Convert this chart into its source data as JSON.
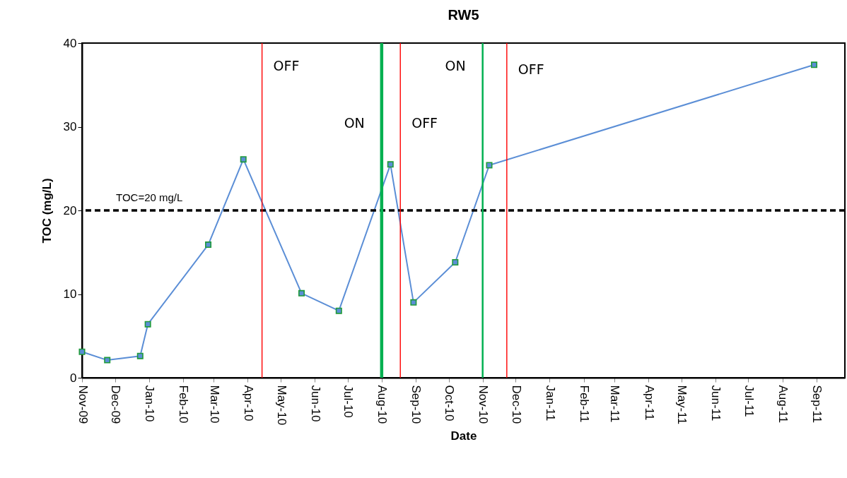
{
  "chart_data": {
    "type": "line",
    "title": "RW5",
    "xlabel": "Date",
    "ylabel": "TOC (mg/L)",
    "x": [
      "2009-11-01",
      "2009-11-24",
      "2009-12-24",
      "2009-12-31",
      "2010-02-24",
      "2010-03-28",
      "2010-05-20",
      "2010-06-23",
      "2010-08-09",
      "2010-08-30",
      "2010-10-07",
      "2010-11-07",
      "2011-08-30"
    ],
    "series": [
      {
        "color": "#5b8ed6",
        "values": [
          3.1,
          2.1,
          2.6,
          6.4,
          15.9,
          26.1,
          10.1,
          8.0,
          25.5,
          9.0,
          13.8,
          25.4,
          37.4
        ]
      }
    ],
    "marker": "square",
    "line_style": "solid",
    "grid": false,
    "xlim": [
      "2009-11-01",
      "2011-09-27"
    ],
    "xticks": [
      {
        "value": "2009-11",
        "label": "Nov-09"
      },
      {
        "value": "2009-12",
        "label": "Dec-09"
      },
      {
        "value": "2010-01",
        "label": "Jan-10"
      },
      {
        "value": "2010-02",
        "label": "Feb-10"
      },
      {
        "value": "2010-03",
        "label": "Mar-10"
      },
      {
        "value": "2010-04",
        "label": "Apr-10"
      },
      {
        "value": "2010-05",
        "label": "May-10"
      },
      {
        "value": "2010-06",
        "label": "Jun-10"
      },
      {
        "value": "2010-07",
        "label": "Jul-10"
      },
      {
        "value": "2010-08",
        "label": "Aug-10"
      },
      {
        "value": "2010-09",
        "label": "Sep-10"
      },
      {
        "value": "2010-10",
        "label": "Oct-10"
      },
      {
        "value": "2010-11",
        "label": "Nov-10"
      },
      {
        "value": "2010-12",
        "label": "Dec-10"
      },
      {
        "value": "2011-01",
        "label": "Jan-11"
      },
      {
        "value": "2011-02",
        "label": "Feb-11"
      },
      {
        "value": "2011-03",
        "label": "Mar-11"
      },
      {
        "value": "2011-04",
        "label": "Apr-11"
      },
      {
        "value": "2011-05",
        "label": "May-11"
      },
      {
        "value": "2011-06",
        "label": "Jun-11"
      },
      {
        "value": "2011-07",
        "label": "Jul-11"
      },
      {
        "value": "2011-08",
        "label": "Aug-11"
      },
      {
        "value": "2011-09",
        "label": "Sep-11"
      }
    ],
    "ylim": [
      0,
      40
    ],
    "yticks": [
      0,
      10,
      20,
      30,
      40
    ],
    "ref_lines": [
      {
        "axis": "y",
        "value": 20,
        "label": "TOC=20 mg/L",
        "color": "#000000",
        "line_style": "dashed"
      },
      {
        "axis": "x",
        "value": "2010-04-14",
        "label": "OFF",
        "color": "#ff0000"
      },
      {
        "axis": "x",
        "value": "2010-08-01",
        "label": "ON",
        "color": "#00b050"
      },
      {
        "axis": "x",
        "value": "2010-08-18",
        "label": "OFF",
        "color": "#ff0000"
      },
      {
        "axis": "x",
        "value": "2010-11-01",
        "label": "ON",
        "color": "#00b050"
      },
      {
        "axis": "x",
        "value": "2010-11-23",
        "label": "OFF",
        "color": "#ff0000"
      }
    ]
  }
}
